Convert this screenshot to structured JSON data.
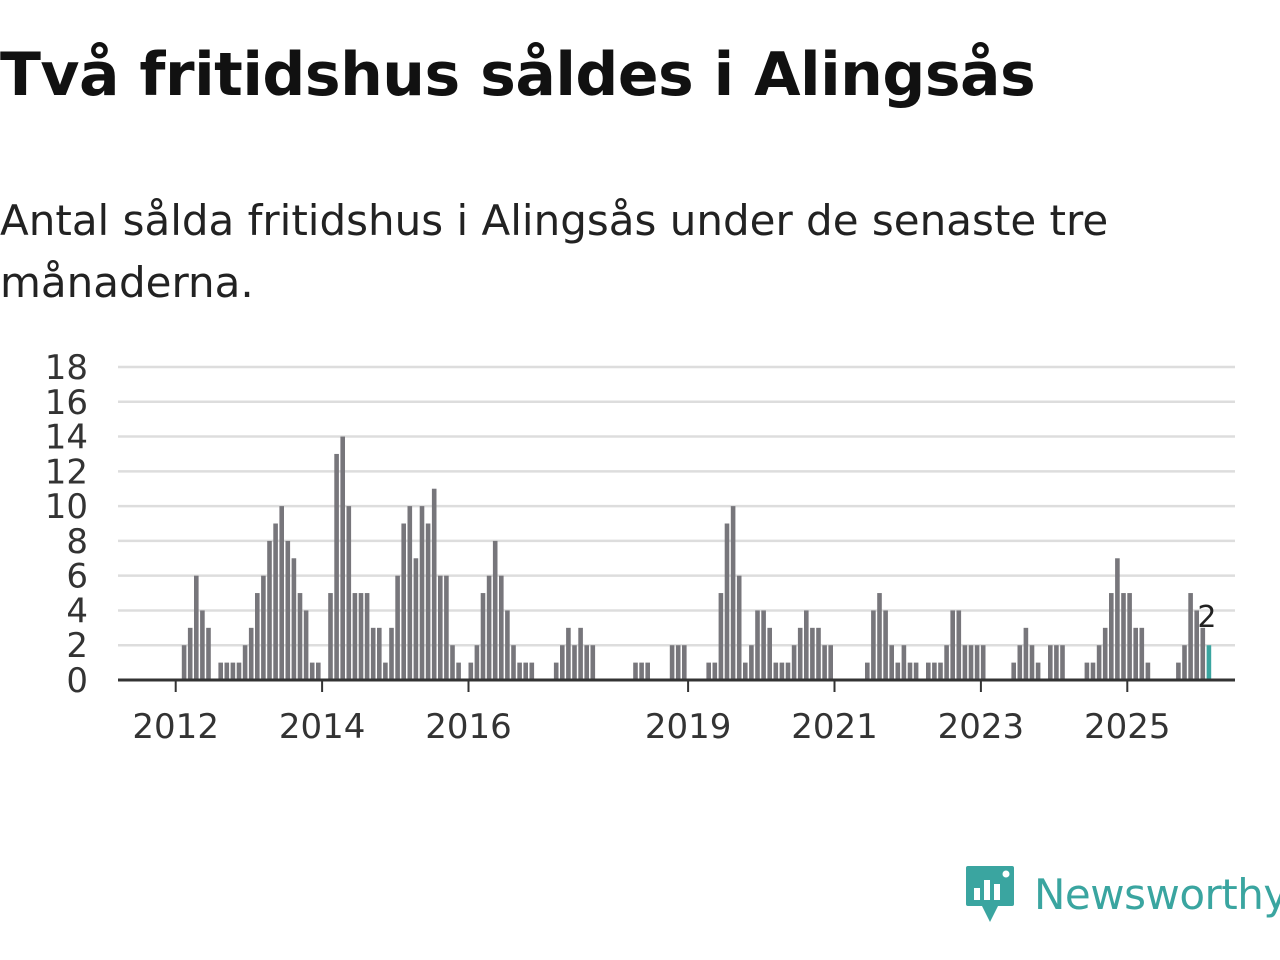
{
  "header": {
    "title": "Två fritidshus såldes i Alingsås",
    "subtitle": "Antal sålda fritidshus i Alingsås under de senaste tre månaderna."
  },
  "brand": {
    "name": "Newsworthy",
    "color": "#3aa5a0",
    "icon": "newsworthy-logo-icon"
  },
  "chart_data": {
    "type": "bar",
    "x_start": "2011-01",
    "x_tick_labels": [
      "2012",
      "2014",
      "2016",
      "2019",
      "2021",
      "2023",
      "2025"
    ],
    "x_tick_months": [
      "2012-01",
      "2014-01",
      "2016-01",
      "2019-01",
      "2021-01",
      "2023-01",
      "2025-01"
    ],
    "y_ticks": [
      0,
      2,
      4,
      6,
      8,
      10,
      12,
      14,
      16,
      18
    ],
    "ylim": [
      0,
      18
    ],
    "grid": true,
    "bar_color": "#77767b",
    "highlight_color": "#3aa5a0",
    "highlight_value_label": "2",
    "values": [
      0,
      0,
      0,
      0,
      0,
      0,
      0,
      0,
      0,
      0,
      0,
      0,
      0,
      2,
      3,
      6,
      4,
      3,
      0,
      1,
      1,
      1,
      1,
      2,
      3,
      5,
      6,
      8,
      9,
      10,
      8,
      7,
      5,
      4,
      1,
      1,
      0,
      5,
      13,
      14,
      10,
      5,
      5,
      5,
      3,
      3,
      1,
      3,
      6,
      9,
      10,
      7,
      10,
      9,
      11,
      6,
      6,
      2,
      1,
      0,
      1,
      2,
      5,
      6,
      8,
      6,
      4,
      2,
      1,
      1,
      1,
      0,
      0,
      0,
      1,
      2,
      3,
      2,
      3,
      2,
      2,
      0,
      0,
      0,
      0,
      0,
      0,
      1,
      1,
      1,
      0,
      0,
      0,
      2,
      2,
      2,
      0,
      0,
      0,
      1,
      1,
      5,
      9,
      10,
      6,
      1,
      2,
      4,
      4,
      3,
      1,
      1,
      1,
      2,
      3,
      4,
      3,
      3,
      2,
      2,
      0,
      0,
      0,
      0,
      0,
      1,
      4,
      5,
      4,
      2,
      1,
      2,
      1,
      1,
      0,
      1,
      1,
      1,
      2,
      4,
      4,
      2,
      2,
      2,
      2,
      0,
      0,
      0,
      0,
      1,
      2,
      3,
      2,
      1,
      0,
      2,
      2,
      2,
      0,
      0,
      0,
      1,
      1,
      2,
      3,
      5,
      7,
      5,
      5,
      3,
      3,
      1,
      0,
      0,
      0,
      0,
      1,
      2,
      5,
      4,
      3,
      2
    ]
  }
}
